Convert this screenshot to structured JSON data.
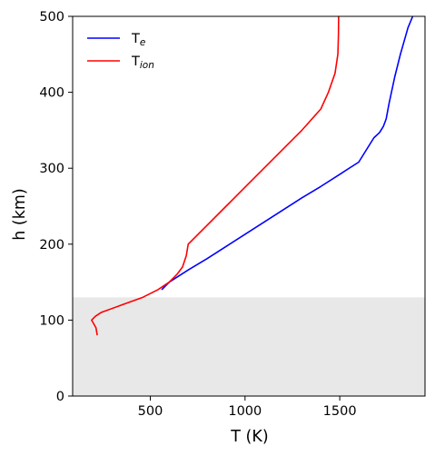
{
  "chart_data": {
    "type": "line",
    "title": "",
    "xlabel": "T (K)",
    "ylabel": "h (km)",
    "xlim": [
      90,
      1950
    ],
    "ylim": [
      0,
      500
    ],
    "xticks": [
      500,
      1000,
      1500
    ],
    "yticks": [
      0,
      100,
      200,
      300,
      400,
      500
    ],
    "xtick_labels": [
      "500",
      "1000",
      "1500"
    ],
    "ytick_labels": [
      "0",
      "100",
      "200",
      "300",
      "400",
      "500"
    ],
    "shaded_region": {
      "y": [
        0,
        130
      ],
      "color": "#e8e8e8"
    },
    "legend_position": "upper-left",
    "series": [
      {
        "name": "Te",
        "legend_base": "T",
        "legend_sub": "e",
        "color": "#0000ff",
        "points": [
          [
            560,
            140
          ],
          [
            600,
            150
          ],
          [
            700,
            166
          ],
          [
            800,
            181
          ],
          [
            900,
            197
          ],
          [
            1000,
            213
          ],
          [
            1100,
            229
          ],
          [
            1200,
            245
          ],
          [
            1300,
            261
          ],
          [
            1400,
            276
          ],
          [
            1500,
            292
          ],
          [
            1600,
            308
          ],
          [
            1680,
            340
          ],
          [
            1710,
            347
          ],
          [
            1730,
            355
          ],
          [
            1745,
            365
          ],
          [
            1760,
            385
          ],
          [
            1790,
            420
          ],
          [
            1820,
            450
          ],
          [
            1860,
            485
          ],
          [
            1885,
            500
          ]
        ]
      },
      {
        "name": "Tion",
        "legend_base": "T",
        "legend_sub": "ion",
        "color": "#ff0000",
        "points": [
          [
            220,
            80
          ],
          [
            213,
            90
          ],
          [
            190,
            100
          ],
          [
            210,
            105
          ],
          [
            240,
            110
          ],
          [
            350,
            120
          ],
          [
            460,
            130
          ],
          [
            540,
            140
          ],
          [
            600,
            150
          ],
          [
            640,
            160
          ],
          [
            670,
            170
          ],
          [
            690,
            185
          ],
          [
            700,
            200
          ],
          [
            800,
            225
          ],
          [
            900,
            250
          ],
          [
            1000,
            275
          ],
          [
            1100,
            300
          ],
          [
            1200,
            325
          ],
          [
            1300,
            350
          ],
          [
            1400,
            378
          ],
          [
            1440,
            400
          ],
          [
            1475,
            425
          ],
          [
            1490,
            450
          ],
          [
            1493,
            475
          ],
          [
            1494,
            500
          ]
        ]
      }
    ]
  }
}
